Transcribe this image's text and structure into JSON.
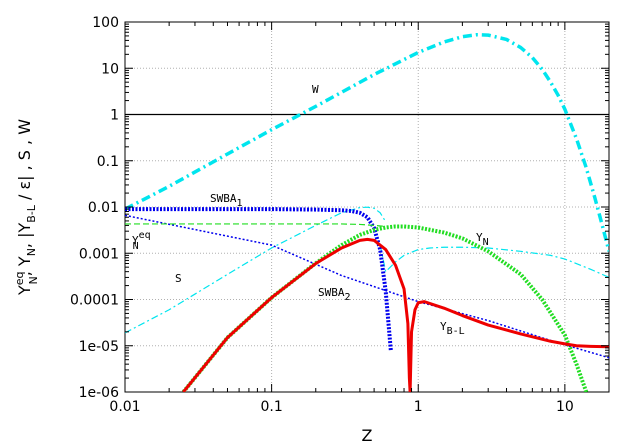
{
  "chart_data": {
    "type": "line",
    "xscale": "log",
    "yscale": "log",
    "xlim": [
      0.01,
      20
    ],
    "ylim": [
      1e-06,
      100
    ],
    "xlabel": "Z",
    "ylabel_parts": [
      "Y",
      "eq",
      "N",
      ",   Y",
      "N",
      ",   |Y",
      "B-L",
      " / ε|  ,   S  ,   W"
    ],
    "x_ticks": [
      "0.01",
      "0.1",
      "1",
      "10"
    ],
    "y_ticks": [
      "1e-06",
      "1e-05",
      "0.0001",
      "0.001",
      "0.01",
      "0.1",
      "1",
      "10",
      "100"
    ],
    "grid": true,
    "series": [
      {
        "name": "W",
        "color": "#00e5ee",
        "style": "dashdot-thick",
        "x": [
          0.01,
          0.02,
          0.05,
          0.1,
          0.2,
          0.5,
          1,
          1.5,
          2,
          2.5,
          3,
          4,
          5,
          6,
          7,
          8,
          9,
          10,
          12,
          14,
          16,
          18,
          20
        ],
        "y": [
          0.009,
          0.028,
          0.14,
          0.47,
          1.5,
          7.3,
          22,
          37,
          48,
          53,
          52,
          42,
          28,
          17,
          9.5,
          5,
          2.6,
          1.3,
          0.3,
          0.07,
          0.016,
          0.004,
          0.0011
        ]
      },
      {
        "name": "S",
        "color": "#00e5ee",
        "style": "dashdot-thin",
        "x": [
          0.01,
          0.02,
          0.05,
          0.1,
          0.2,
          0.3,
          0.4,
          0.45,
          0.5,
          0.55,
          0.6
        ],
        "y": [
          1.9e-05,
          6e-05,
          0.00035,
          0.0013,
          0.004,
          0.0075,
          0.0097,
          0.0099,
          0.0094,
          0.0075,
          0.0048
        ]
      },
      {
        "color": "#00e5ee",
        "style": "dashdot-thin",
        "x": [
          0.55,
          0.6,
          0.7,
          0.8,
          1,
          1.2,
          1.5,
          2,
          3,
          5,
          8,
          10,
          15,
          20
        ],
        "y": [
          0.0015,
          0.0004,
          0.00065,
          0.0009,
          0.0012,
          0.0013,
          0.00135,
          0.00135,
          0.0013,
          0.0011,
          0.0009,
          0.00075,
          0.00045,
          0.0003
        ]
      },
      {
        "name": "SWBA",
        "name_sub": "1",
        "color": "#0000ee",
        "style": "dotted-thick",
        "x": [
          0.01,
          0.05,
          0.1,
          0.2,
          0.3,
          0.35,
          0.4,
          0.45,
          0.5,
          0.55,
          0.6,
          0.65
        ],
        "y": [
          0.009,
          0.009,
          0.009,
          0.0088,
          0.0085,
          0.0082,
          0.0075,
          0.006,
          0.0035,
          0.0012,
          0.00015,
          8e-06
        ]
      },
      {
        "name": "SWBA",
        "name_sub": "2",
        "color": "#0000ee",
        "style": "dotted-thin",
        "x": [
          0.01,
          0.1,
          0.3,
          1,
          3,
          8,
          10,
          20
        ],
        "y": [
          0.0066,
          0.0015,
          0.00033,
          9e-05,
          3.5e-05,
          1.3e-05,
          1.05e-05,
          5.5e-06
        ]
      },
      {
        "name": "Y",
        "name_sup": "eq",
        "name_sub": "N",
        "color": "#22dd22",
        "style": "dashed-thin",
        "x": [
          0.01,
          0.1,
          0.2,
          0.3,
          0.4,
          0.5,
          0.6
        ],
        "y": [
          0.0043,
          0.0043,
          0.0043,
          0.0043,
          0.0042,
          0.004,
          0.0038
        ]
      },
      {
        "name": "Y",
        "name_sub": "N",
        "color": "#22dd22",
        "style": "dotted-thick",
        "x": [
          0.025,
          0.05,
          0.1,
          0.2,
          0.3,
          0.4,
          0.5,
          0.6,
          0.7,
          0.8,
          1,
          1.5,
          2,
          3,
          5,
          7,
          10,
          12,
          14
        ],
        "y": [
          1e-06,
          1.5e-05,
          0.00011,
          0.00061,
          0.0015,
          0.0025,
          0.0032,
          0.0036,
          0.0038,
          0.0038,
          0.0036,
          0.0028,
          0.0021,
          0.0011,
          0.00035,
          0.0001,
          1.7e-05,
          4e-06,
          1e-06
        ]
      },
      {
        "name": "Y",
        "name_sub": "B-L",
        "color": "#ee0000",
        "style": "solid-thick",
        "x": [
          0.025,
          0.05,
          0.1,
          0.2,
          0.3,
          0.4,
          0.45,
          0.5,
          0.6,
          0.7,
          0.8,
          0.85,
          0.87,
          0.88,
          0.9,
          0.95,
          1,
          1.1,
          1.5,
          2,
          3,
          5,
          8,
          10,
          12,
          15,
          20
        ],
        "y": [
          1e-06,
          1.5e-05,
          0.00011,
          0.0006,
          0.0013,
          0.0019,
          0.002,
          0.0019,
          0.0012,
          0.00055,
          0.00017,
          3e-05,
          2e-06,
          1e-06,
          2e-05,
          6e-05,
          8.5e-05,
          9e-05,
          6.5e-05,
          4.5e-05,
          2.8e-05,
          1.8e-05,
          1.25e-05,
          1.1e-05,
          1e-05,
          9.7e-06,
          9.5e-06
        ]
      }
    ],
    "reference_line": {
      "y": 1,
      "color": "#000000"
    }
  }
}
